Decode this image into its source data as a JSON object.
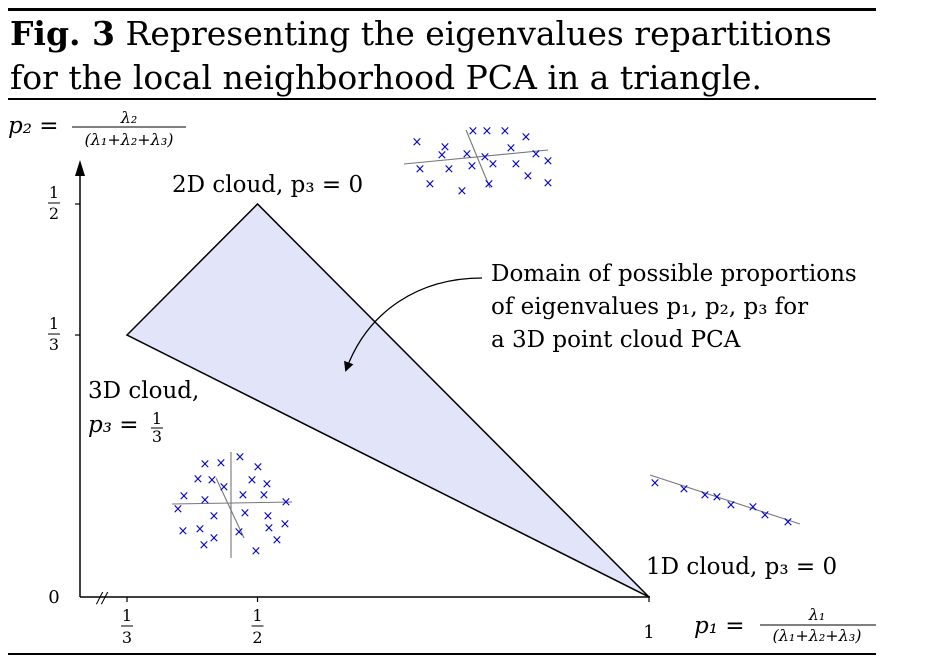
{
  "caption": {
    "fig_label": "Fig. 3",
    "text": "Representing the eigenvalues repartitions for the local neighborhood PCA in a triangle."
  },
  "axes": {
    "y_label_lhs": "p₂ =",
    "y_label_num": "λ₂",
    "y_label_den": "(λ₁+λ₂+λ₃)",
    "x_label_lhs": "p₁ =",
    "x_label_num": "λ₁",
    "x_label_den": "(λ₁+λ₂+λ₃)",
    "x_ticks": [
      {
        "num": "1",
        "den": "3",
        "value": 0.3333
      },
      {
        "num": "1",
        "den": "2",
        "value": 0.5
      },
      {
        "whole": "1",
        "value": 1
      }
    ],
    "y_ticks": [
      {
        "num": "1",
        "den": "2",
        "value": 0.5
      },
      {
        "num": "1",
        "den": "3",
        "value": 0.3333
      },
      {
        "whole": "0",
        "value": 0
      }
    ],
    "break_mark": "//"
  },
  "triangle": {
    "vertices": [
      {
        "p1": 0.3333,
        "p2": 0.3333,
        "label_line1": "3D cloud,",
        "label_line2_lhs": "p₃ =",
        "label_frac_num": "1",
        "label_frac_den": "3"
      },
      {
        "p1": 0.5,
        "p2": 0.5,
        "label": "2D cloud, p₃ = 0"
      },
      {
        "p1": 1,
        "p2": 0,
        "label": "1D cloud, p₃ = 0"
      }
    ],
    "fill_color": "#e2e4fa",
    "stroke_color": "#000000"
  },
  "annotation": {
    "lines": [
      "Domain of possible proportions",
      "of eigenvalues p₁, p₂, p₃ for",
      "a 3D point cloud PCA"
    ]
  },
  "point_clouds": {
    "marker": "×",
    "marker_color": "#0000cc",
    "axis_color": "#777777"
  }
}
